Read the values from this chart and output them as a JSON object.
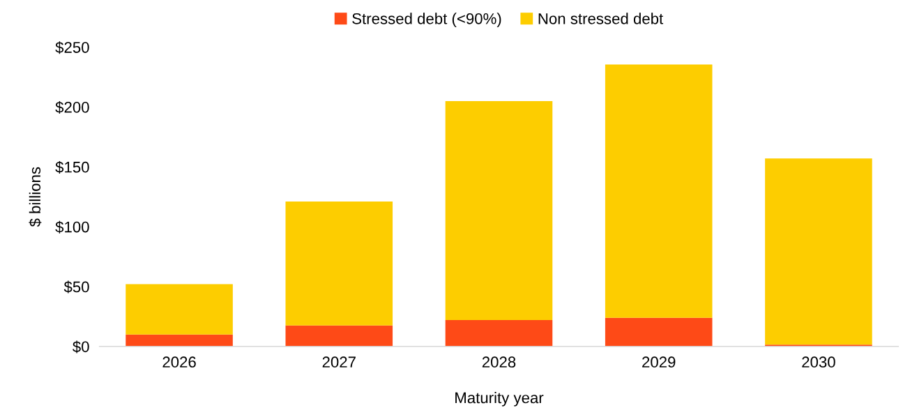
{
  "chart_data": {
    "type": "bar",
    "stacked": true,
    "xlabel": "Maturity year",
    "ylabel": "$ billions",
    "categories": [
      "2026",
      "2027",
      "2028",
      "2029",
      "2030"
    ],
    "series": [
      {
        "name": "Stressed debt (<90%)",
        "color": "#fe4a17",
        "values": [
          10,
          17.5,
          22,
          24,
          1.5
        ]
      },
      {
        "name": "Non stressed debt",
        "color": "#fdcd00",
        "values": [
          42,
          103.5,
          183,
          211.5,
          155.5
        ]
      }
    ],
    "ylim": [
      0,
      250
    ],
    "yticks": [
      {
        "value": 0,
        "label": "$0"
      },
      {
        "value": 50,
        "label": "$50"
      },
      {
        "value": 100,
        "label": "$100"
      },
      {
        "value": 150,
        "label": "$150"
      },
      {
        "value": 200,
        "label": "$200"
      },
      {
        "value": 250,
        "label": "$250"
      }
    ],
    "grid": false,
    "legend": "top"
  }
}
